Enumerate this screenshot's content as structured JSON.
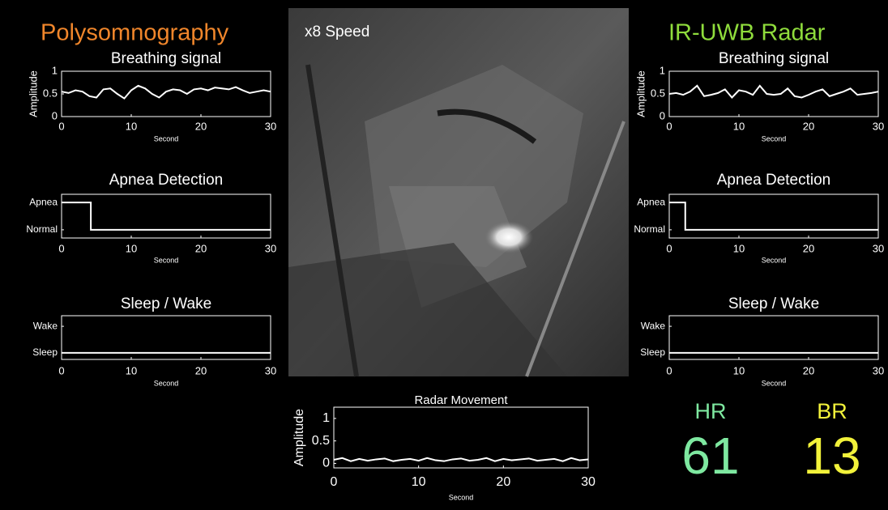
{
  "header": {
    "left": "Polysomnography",
    "center": "x8 Speed",
    "right": "IR-UWB Radar"
  },
  "vitals": {
    "hr_label": "HR",
    "hr": 61,
    "br_label": "BR",
    "br": 13
  },
  "chart_data": [
    {
      "type": "line",
      "title": "Breathing signal",
      "xlabel": "Second",
      "ylabel": "Amplitude",
      "color": "#ffffff",
      "x": [
        0,
        1,
        2,
        3,
        4,
        5,
        6,
        7,
        8,
        9,
        10,
        11,
        12,
        13,
        14,
        15,
        16,
        17,
        18,
        19,
        20,
        21,
        22,
        23,
        24,
        25,
        26,
        27,
        28,
        29,
        30
      ],
      "values": [
        0.55,
        0.52,
        0.58,
        0.55,
        0.45,
        0.42,
        0.6,
        0.62,
        0.5,
        0.4,
        0.58,
        0.68,
        0.62,
        0.5,
        0.42,
        0.55,
        0.6,
        0.58,
        0.5,
        0.6,
        0.62,
        0.58,
        0.64,
        0.62,
        0.6,
        0.65,
        0.58,
        0.52,
        0.55,
        0.58,
        0.55
      ],
      "xlim": [
        0,
        30
      ],
      "xticks": [
        0,
        10,
        20,
        30
      ],
      "ylim": [
        0,
        1
      ],
      "yticks": [
        0,
        0.5,
        1
      ]
    },
    {
      "type": "line",
      "title": "Apnea Detection",
      "xlabel": "Second",
      "color": "#ffffff",
      "x": [
        0,
        4.2,
        4.2,
        30
      ],
      "values": [
        1,
        1,
        0,
        0
      ],
      "xlim": [
        0,
        30
      ],
      "xticks": [
        0,
        10,
        20,
        30
      ],
      "ylim": [
        -0.3,
        1.3
      ],
      "yticks": [
        {
          "value": 1,
          "label": "Apnea"
        },
        {
          "value": 0,
          "label": "Normal"
        }
      ]
    },
    {
      "type": "line",
      "title": "Sleep / Wake",
      "xlabel": "Second",
      "color": "#ffffff",
      "x": [
        0,
        30
      ],
      "values": [
        0,
        0
      ],
      "xlim": [
        0,
        30
      ],
      "xticks": [
        0,
        10,
        20,
        30
      ],
      "ylim": [
        -0.25,
        1.4
      ],
      "yticks": [
        {
          "value": 1,
          "label": "Wake"
        },
        {
          "value": 0,
          "label": "Sleep"
        }
      ]
    },
    {
      "type": "line",
      "title": "Breathing signal",
      "xlabel": "Second",
      "ylabel": "Amplitude",
      "color": "#ffffff",
      "x": [
        0,
        1,
        2,
        3,
        4,
        5,
        6,
        7,
        8,
        9,
        10,
        11,
        12,
        13,
        14,
        15,
        16,
        17,
        18,
        19,
        20,
        21,
        22,
        23,
        24,
        25,
        26,
        27,
        28,
        29,
        30
      ],
      "values": [
        0.5,
        0.52,
        0.48,
        0.55,
        0.68,
        0.45,
        0.48,
        0.52,
        0.6,
        0.42,
        0.58,
        0.55,
        0.48,
        0.68,
        0.5,
        0.48,
        0.5,
        0.62,
        0.45,
        0.42,
        0.48,
        0.55,
        0.6,
        0.45,
        0.5,
        0.55,
        0.62,
        0.48,
        0.5,
        0.52,
        0.55
      ],
      "xlim": [
        0,
        30
      ],
      "xticks": [
        0,
        10,
        20,
        30
      ],
      "ylim": [
        0,
        1
      ],
      "yticks": [
        0,
        0.5,
        1
      ]
    },
    {
      "type": "line",
      "title": "Apnea Detection",
      "xlabel": "Second",
      "color": "#ffffff",
      "x": [
        0,
        2.3,
        2.3,
        30
      ],
      "values": [
        1,
        1,
        0,
        0
      ],
      "xlim": [
        0,
        30
      ],
      "xticks": [
        0,
        10,
        20,
        30
      ],
      "ylim": [
        -0.3,
        1.3
      ],
      "yticks": [
        {
          "value": 1,
          "label": "Apnea"
        },
        {
          "value": 0,
          "label": "Normal"
        }
      ]
    },
    {
      "type": "line",
      "title": "Sleep / Wake",
      "xlabel": "Second",
      "color": "#ffffff",
      "x": [
        0,
        30
      ],
      "values": [
        0,
        0
      ],
      "xlim": [
        0,
        30
      ],
      "xticks": [
        0,
        10,
        20,
        30
      ],
      "ylim": [
        -0.25,
        1.4
      ],
      "yticks": [
        {
          "value": 1,
          "label": "Wake"
        },
        {
          "value": 0,
          "label": "Sleep"
        }
      ]
    },
    {
      "type": "line",
      "title": "Radar Movement",
      "xlabel": "Second",
      "ylabel": "Amplitude",
      "color": "#ffffff",
      "x": [
        0,
        1,
        2,
        3,
        4,
        5,
        6,
        7,
        8,
        9,
        10,
        11,
        12,
        13,
        14,
        15,
        16,
        17,
        18,
        19,
        20,
        21,
        22,
        23,
        24,
        25,
        26,
        27,
        28,
        29,
        30
      ],
      "values": [
        0.08,
        0.12,
        0.05,
        0.1,
        0.06,
        0.09,
        0.11,
        0.05,
        0.08,
        0.1,
        0.06,
        0.12,
        0.07,
        0.05,
        0.09,
        0.11,
        0.06,
        0.08,
        0.12,
        0.05,
        0.1,
        0.07,
        0.09,
        0.11,
        0.06,
        0.08,
        0.1,
        0.05,
        0.12,
        0.07,
        0.09
      ],
      "xlim": [
        0,
        30
      ],
      "xticks": [
        0,
        10,
        20,
        30
      ],
      "ylim": [
        -0.1,
        1.25
      ],
      "yticks": [
        0,
        0.5,
        1
      ]
    }
  ]
}
